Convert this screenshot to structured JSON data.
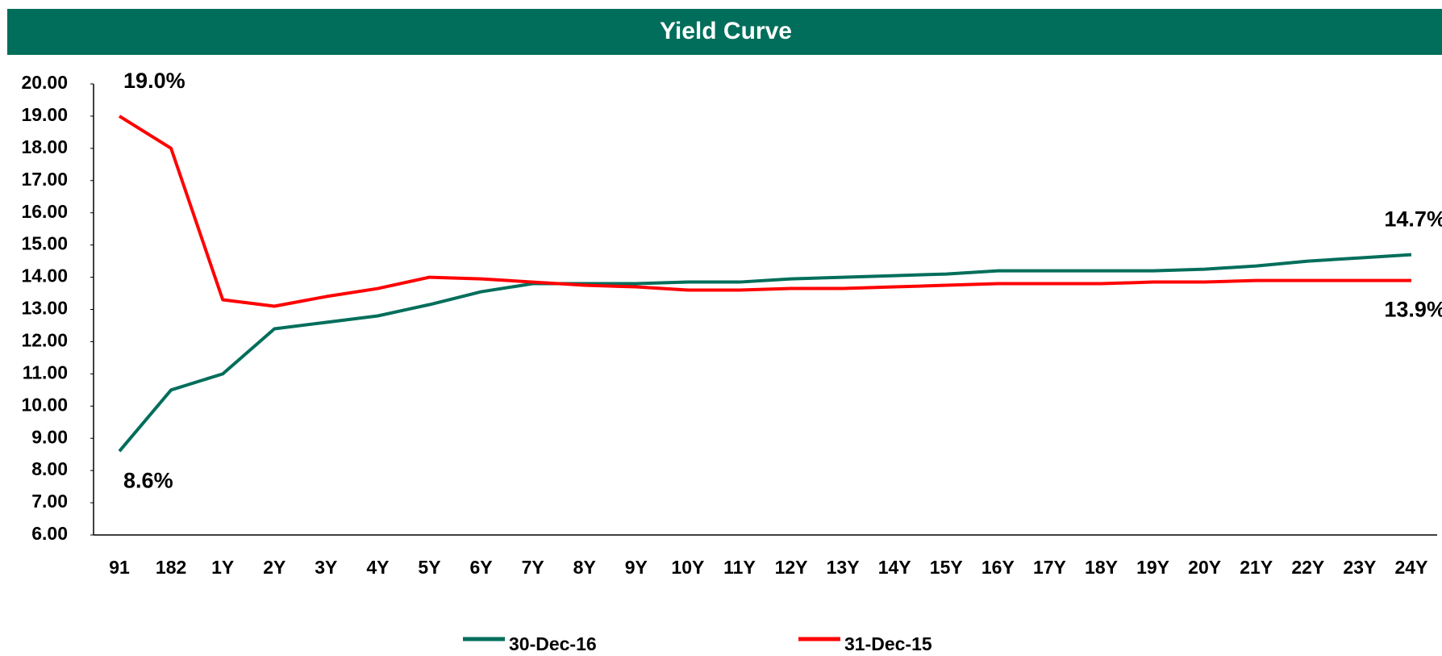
{
  "chart_data": {
    "type": "line",
    "title": "Yield Curve",
    "categories": [
      "91",
      "182",
      "1Y",
      "2Y",
      "3Y",
      "4Y",
      "5Y",
      "6Y",
      "7Y",
      "8Y",
      "9Y",
      "10Y",
      "11Y",
      "12Y",
      "13Y",
      "14Y",
      "15Y",
      "16Y",
      "17Y",
      "18Y",
      "19Y",
      "20Y",
      "21Y",
      "22Y",
      "23Y",
      "24Y"
    ],
    "series": [
      {
        "name": "30-Dec-16",
        "color": "#006e5b",
        "values": [
          8.6,
          10.5,
          11.0,
          12.4,
          12.6,
          12.8,
          13.15,
          13.55,
          13.8,
          13.8,
          13.8,
          13.85,
          13.85,
          13.95,
          14.0,
          14.05,
          14.1,
          14.2,
          14.2,
          14.2,
          14.2,
          14.25,
          14.35,
          14.5,
          14.6,
          14.7
        ],
        "value_labels": [
          "8.6%",
          null,
          null,
          null,
          null,
          null,
          null,
          null,
          null,
          null,
          null,
          null,
          null,
          null,
          null,
          null,
          null,
          null,
          null,
          null,
          null,
          null,
          null,
          null,
          null,
          "14.7%"
        ]
      },
      {
        "name": "31-Dec-15",
        "color": "#ff0000",
        "values": [
          19.0,
          18.0,
          13.3,
          13.1,
          13.4,
          13.65,
          14.0,
          13.95,
          13.85,
          13.75,
          13.7,
          13.6,
          13.6,
          13.65,
          13.65,
          13.7,
          13.75,
          13.8,
          13.8,
          13.8,
          13.85,
          13.85,
          13.9,
          13.9,
          13.9,
          13.9
        ],
        "value_labels": [
          "19.0%",
          null,
          null,
          null,
          null,
          null,
          null,
          null,
          null,
          null,
          null,
          null,
          null,
          null,
          null,
          null,
          null,
          null,
          null,
          null,
          null,
          null,
          null,
          null,
          null,
          "13.9%"
        ]
      }
    ],
    "ylim": [
      6,
      20
    ],
    "yticks": [
      {
        "value": 6,
        "label": "6.00"
      },
      {
        "value": 7,
        "label": "7.00"
      },
      {
        "value": 8,
        "label": "8.00"
      },
      {
        "value": 9,
        "label": "9.00"
      },
      {
        "value": 10,
        "label": "10.00"
      },
      {
        "value": 11,
        "label": "11.00"
      },
      {
        "value": 12,
        "label": "12.00"
      },
      {
        "value": 13,
        "label": "13.00"
      },
      {
        "value": 14,
        "label": "14.00"
      },
      {
        "value": 15,
        "label": "15.00"
      },
      {
        "value": 16,
        "label": "16.00"
      },
      {
        "value": 17,
        "label": "17.00"
      },
      {
        "value": 18,
        "label": "18.00"
      },
      {
        "value": 19,
        "label": "19.00"
      },
      {
        "value": 20,
        "label": "20.00"
      }
    ],
    "grid": false,
    "legend": "bottom",
    "title_background": "#006e5b"
  }
}
